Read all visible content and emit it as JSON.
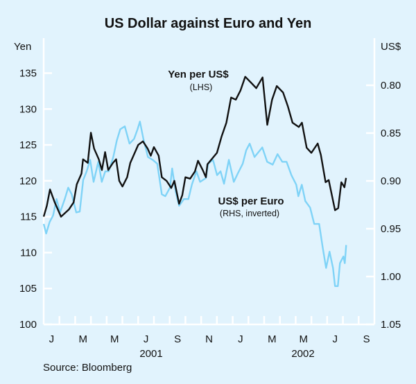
{
  "chart_data": {
    "type": "line",
    "title": "US Dollar against Euro and Yen",
    "source": "Source: Bloomberg",
    "x_unit": "months since start of January 2001",
    "xlim": [
      0,
      21
    ],
    "month_labels": [
      "J",
      "M",
      "M",
      "J",
      "S",
      "N",
      "J",
      "M",
      "M",
      "J",
      "S"
    ],
    "year_labels": [
      "2001",
      "2002"
    ],
    "left_axis": {
      "label": "Yen",
      "ylim": [
        100,
        135
      ],
      "ticks": [
        "100",
        "105",
        "110",
        "115",
        "120",
        "125",
        "130",
        "135"
      ]
    },
    "right_axis": {
      "label": "US$",
      "ylim": [
        0.8,
        1.05
      ],
      "inverted": true,
      "ticks": [
        "0.80",
        "0.85",
        "0.90",
        "0.95",
        "1.00",
        "1.05"
      ]
    },
    "series": [
      {
        "name": "Yen per US$",
        "note": "(LHS)",
        "axis": "left",
        "color": "#111111",
        "x": [
          0.0,
          0.2,
          0.4,
          0.7,
          1.1,
          1.6,
          1.9,
          2.1,
          2.4,
          2.5,
          2.8,
          3.0,
          3.2,
          3.5,
          3.7,
          3.9,
          4.1,
          4.4,
          4.6,
          4.8,
          5.0,
          5.3,
          5.5,
          5.7,
          6.0,
          6.3,
          6.6,
          6.8,
          7.0,
          7.3,
          7.5,
          7.8,
          8.1,
          8.3,
          8.6,
          8.8,
          9.0,
          9.3,
          9.6,
          9.8,
          10.1,
          10.3,
          10.4,
          11.0,
          11.3,
          11.6,
          11.9,
          12.2,
          12.5,
          12.8,
          13.2,
          13.5,
          13.9,
          14.2,
          14.5,
          14.8,
          15.2,
          15.5,
          15.8,
          16.2,
          16.4,
          16.7,
          17.0,
          17.4,
          17.6,
          17.9,
          18.1,
          18.5,
          18.7,
          18.9,
          19.1,
          19.2
        ],
        "y": [
          115,
          116.5,
          118.8,
          117,
          115,
          116,
          117,
          119.5,
          121,
          123,
          122.5,
          126.7,
          124.5,
          123,
          121.5,
          124,
          121.5,
          122.5,
          123,
          120,
          119.2,
          120.5,
          122.5,
          123.5,
          125,
          125.5,
          124.5,
          123.5,
          124.7,
          123.5,
          120.5,
          120,
          119,
          120,
          116.8,
          118,
          120.5,
          120.3,
          121.3,
          122.8,
          121.5,
          120.5,
          122.3,
          123.9,
          126.2,
          128.1,
          131.6,
          131.3,
          132.6,
          134.5,
          133.6,
          132.9,
          134.4,
          127.8,
          131.3,
          133.2,
          132.3,
          130.4,
          128.1,
          127.5,
          128.1,
          124.6,
          123.9,
          125.2,
          123.6,
          119.8,
          120.1,
          115.9,
          116.2,
          119.8,
          119.1,
          120.4
        ]
      },
      {
        "name": "US$ per Euro",
        "note": "(RHS, inverted)",
        "axis": "right",
        "color": "#7fd3f7",
        "x": [
          0.0,
          0.16,
          0.38,
          0.6,
          0.82,
          1.04,
          1.34,
          1.56,
          1.78,
          2.07,
          2.29,
          2.51,
          2.73,
          2.95,
          3.17,
          3.47,
          3.69,
          3.91,
          4.13,
          4.42,
          4.64,
          4.86,
          5.15,
          5.45,
          5.74,
          5.96,
          6.11,
          6.33,
          6.62,
          6.92,
          7.21,
          7.5,
          7.72,
          8.02,
          8.16,
          8.38,
          8.6,
          8.9,
          9.19,
          9.41,
          9.7,
          9.93,
          10.3,
          10.44,
          10.75,
          11.01,
          11.23,
          11.45,
          11.76,
          12.07,
          12.33,
          12.64,
          12.86,
          13.08,
          13.39,
          13.88,
          14.19,
          14.54,
          14.85,
          15.15,
          15.42,
          15.73,
          16.04,
          16.17,
          16.39,
          16.61,
          16.92,
          17.18,
          17.49,
          17.71,
          17.93,
          18.15,
          18.37,
          18.5,
          18.68,
          18.81,
          19.03,
          19.12,
          19.21
        ],
        "y": [
          0.945,
          0.955,
          0.943,
          0.936,
          0.919,
          0.933,
          0.919,
          0.907,
          0.914,
          0.933,
          0.932,
          0.899,
          0.89,
          0.878,
          0.901,
          0.88,
          0.901,
          0.89,
          0.89,
          0.875,
          0.858,
          0.846,
          0.843,
          0.861,
          0.856,
          0.846,
          0.838,
          0.856,
          0.875,
          0.878,
          0.882,
          0.914,
          0.916,
          0.907,
          0.887,
          0.911,
          0.926,
          0.919,
          0.919,
          0.904,
          0.89,
          0.901,
          0.897,
          0.882,
          0.878,
          0.894,
          0.89,
          0.903,
          0.878,
          0.901,
          0.892,
          0.882,
          0.868,
          0.861,
          0.875,
          0.865,
          0.88,
          0.883,
          0.872,
          0.88,
          0.88,
          0.894,
          0.904,
          0.916,
          0.904,
          0.921,
          0.928,
          0.945,
          0.945,
          0.969,
          0.991,
          0.974,
          0.991,
          1.01,
          1.01,
          0.986,
          0.979,
          0.986,
          0.967
        ]
      }
    ],
    "grid": false
  }
}
